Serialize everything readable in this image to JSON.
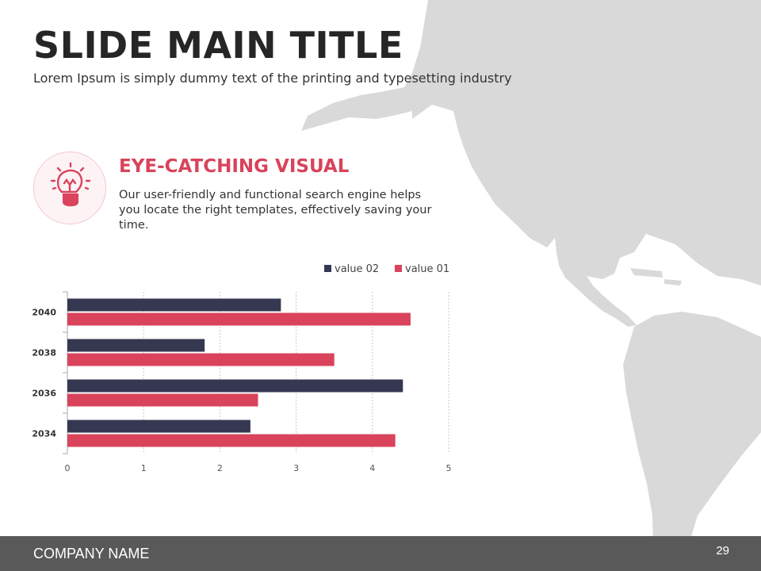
{
  "slide": {
    "title": "SLIDE MAIN TITLE",
    "subtitle": "Lorem Ipsum is simply dummy text of the printing and typesetting industry"
  },
  "feature": {
    "icon": "lightbulb-icon",
    "heading": "EYE-CATCHING VISUAL",
    "text": "Our user-friendly and functional search engine helps you locate the right templates, effectively saving your time."
  },
  "footer": {
    "company": "COMPANY NAME",
    "page_number": "29"
  },
  "colors": {
    "accent": "#d9435b",
    "dark": "#363852",
    "map": "#d9d9d9",
    "footer_bg": "#595959",
    "title": "#262626"
  },
  "chart_data": {
    "type": "bar",
    "orientation": "horizontal",
    "categories": [
      "2040",
      "2038",
      "2036",
      "2034"
    ],
    "series": [
      {
        "name": "value 02",
        "values": [
          2.8,
          1.8,
          4.4,
          2.4
        ],
        "color": "#363852"
      },
      {
        "name": "value 01",
        "values": [
          4.5,
          3.5,
          2.5,
          4.3
        ],
        "color": "#d9435b"
      }
    ],
    "xlim": [
      0,
      5
    ],
    "xticks": [
      0,
      1,
      2,
      3,
      4,
      5
    ],
    "grid": "vertical-dashed",
    "legend": "top-right",
    "title": "",
    "xlabel": "",
    "ylabel": ""
  }
}
